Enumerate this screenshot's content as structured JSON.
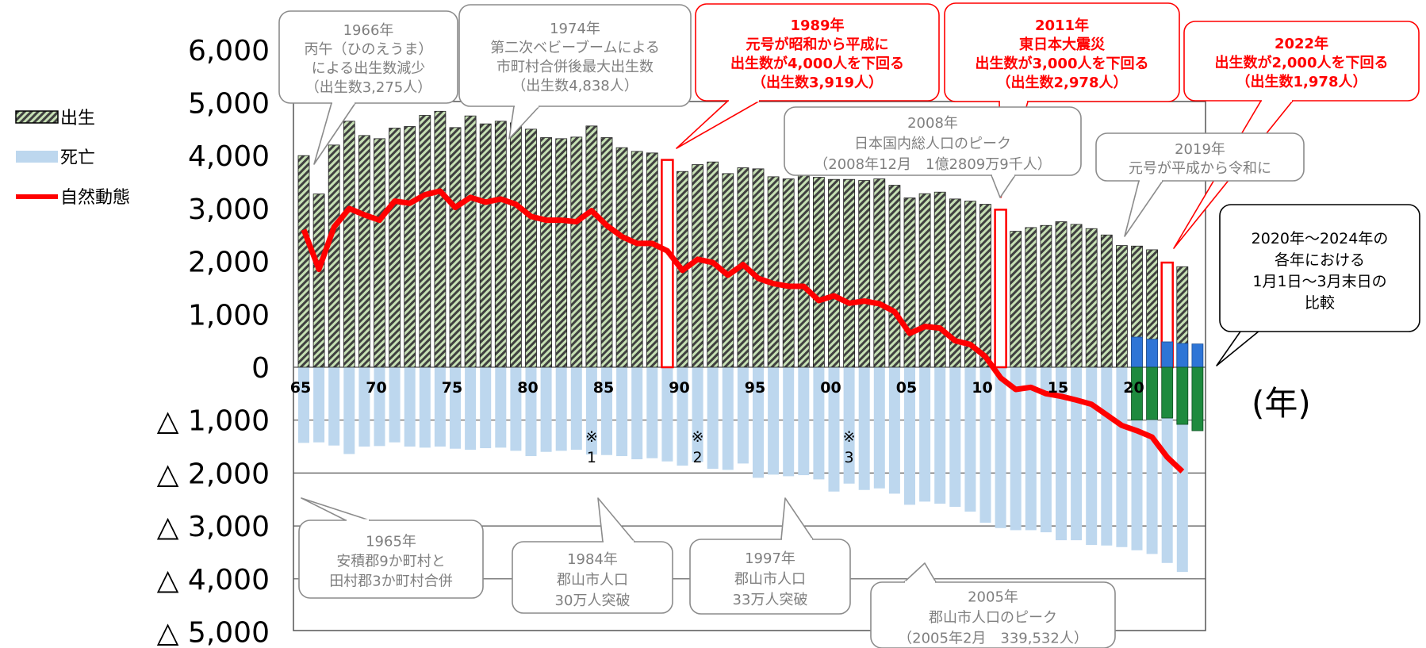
{
  "chart_data": {
    "type": "bar",
    "y_unit_label": "(年)",
    "ylim": [
      -5000,
      6000
    ],
    "y_ticks": [
      {
        "value": 6000,
        "label": "6,000"
      },
      {
        "value": 5000,
        "label": "5,000"
      },
      {
        "value": 4000,
        "label": "4,000"
      },
      {
        "value": 3000,
        "label": "3,000"
      },
      {
        "value": 2000,
        "label": "2,000"
      },
      {
        "value": 1000,
        "label": "1,000"
      },
      {
        "value": 0,
        "label": "0"
      },
      {
        "value": -1000,
        "label": "△ 1,000"
      },
      {
        "value": -2000,
        "label": "△ 2,000"
      },
      {
        "value": -3000,
        "label": "△ 3,000"
      },
      {
        "value": -4000,
        "label": "△ 4,000"
      },
      {
        "value": -5000,
        "label": "△ 5,000"
      }
    ],
    "x_ticks": [
      {
        "year": 1965,
        "label": "65"
      },
      {
        "year": 1970,
        "label": "70"
      },
      {
        "year": 1975,
        "label": "75"
      },
      {
        "year": 1980,
        "label": "80"
      },
      {
        "year": 1985,
        "label": "85"
      },
      {
        "year": 1990,
        "label": "90"
      },
      {
        "year": 1995,
        "label": "95"
      },
      {
        "year": 2000,
        "label": "00"
      },
      {
        "year": 2005,
        "label": "05"
      },
      {
        "year": 2010,
        "label": "10"
      },
      {
        "year": 2015,
        "label": "15"
      },
      {
        "year": 2020,
        "label": "20"
      }
    ],
    "legend": [
      {
        "name": "出生",
        "style": "hatched"
      },
      {
        "name": "死亡",
        "style": "lightblue"
      },
      {
        "name": "自然動態",
        "style": "line"
      }
    ],
    "years": [
      1965,
      1966,
      1967,
      1968,
      1969,
      1970,
      1971,
      1972,
      1973,
      1974,
      1975,
      1976,
      1977,
      1978,
      1979,
      1980,
      1981,
      1982,
      1983,
      1984,
      1985,
      1986,
      1987,
      1988,
      1989,
      1990,
      1991,
      1992,
      1993,
      1994,
      1995,
      1996,
      1997,
      1998,
      1999,
      2000,
      2001,
      2002,
      2003,
      2004,
      2005,
      2006,
      2007,
      2008,
      2009,
      2010,
      2011,
      2012,
      2013,
      2014,
      2015,
      2016,
      2017,
      2018,
      2019,
      2020,
      2021,
      2022,
      2023,
      2024
    ],
    "series": [
      {
        "name": "出生",
        "values": [
          4000,
          3275,
          4200,
          4650,
          4380,
          4320,
          4520,
          4550,
          4760,
          4838,
          4530,
          4750,
          4600,
          4650,
          4620,
          4500,
          4340,
          4320,
          4350,
          4560,
          4340,
          4150,
          4080,
          4050,
          3919,
          3700,
          3830,
          3880,
          3660,
          3770,
          3750,
          3600,
          3560,
          3640,
          3590,
          3550,
          3550,
          3530,
          3560,
          3440,
          3200,
          3280,
          3310,
          3180,
          3140,
          3080,
          2978,
          2570,
          2640,
          2680,
          2750,
          2700,
          2620,
          2500,
          2300,
          2290,
          2220,
          1978,
          1900,
          null
        ]
      },
      {
        "name": "死亡",
        "values": [
          -1430,
          -1420,
          -1480,
          -1640,
          -1500,
          -1490,
          -1420,
          -1500,
          -1520,
          -1500,
          -1540,
          -1560,
          -1530,
          -1520,
          -1580,
          -1680,
          -1600,
          -1580,
          -1560,
          -1650,
          -1660,
          -1680,
          -1740,
          -1720,
          -1780,
          -1860,
          -1790,
          -1920,
          -1940,
          -1820,
          -2090,
          -2030,
          -2060,
          -2040,
          -2120,
          -2350,
          -2200,
          -2320,
          -2290,
          -2390,
          -2600,
          -2540,
          -2580,
          -2640,
          -2730,
          -2940,
          -3040,
          -3080,
          -3080,
          -3120,
          -3270,
          -3270,
          -3360,
          -3370,
          -3400,
          -3460,
          -3530,
          -3700,
          -3870,
          null
        ]
      },
      {
        "name": "自然動態",
        "values": [
          2600,
          1850,
          2650,
          3000,
          2880,
          2780,
          3140,
          3100,
          3260,
          3330,
          3020,
          3210,
          3120,
          3180,
          3080,
          2850,
          2780,
          2780,
          2750,
          2960,
          2680,
          2470,
          2340,
          2340,
          2200,
          1830,
          2040,
          1980,
          1740,
          1940,
          1680,
          1580,
          1530,
          1530,
          1260,
          1350,
          1210,
          1250,
          1200,
          1050,
          640,
          770,
          740,
          500,
          430,
          200,
          -200,
          -420,
          -380,
          -500,
          -550,
          -620,
          -700,
          -900,
          -1100,
          -1200,
          -1320,
          -1700,
          -1970,
          null
        ]
      },
      {
        "name": "1月1日～3月末日 出生",
        "values": [
          570,
          530,
          480,
          450,
          440
        ],
        "years": [
          2020,
          2021,
          2022,
          2023,
          2024
        ]
      },
      {
        "name": "1月1日～3月末日 死亡",
        "values": [
          -1000,
          -990,
          -960,
          -1080,
          -1200
        ],
        "years": [
          2020,
          2021,
          2022,
          2023,
          2024
        ]
      }
    ],
    "highlighted_years": [
      1989,
      2011,
      2022
    ],
    "markers": [
      {
        "label": "※",
        "sub": "1",
        "year": 1984
      },
      {
        "label": "※",
        "sub": "2",
        "year": 1991
      },
      {
        "label": "※",
        "sub": "3",
        "year": 2001
      }
    ]
  },
  "annotations": {
    "a1966": [
      "1966年",
      "丙午（ひのえうま）",
      "による出生数減少",
      "（出生数3,275人）"
    ],
    "a1974": [
      "1974年",
      "第二次ベビーブームによる",
      "市町村合併後最大出生数",
      "（出生数4,838人）"
    ],
    "a1989": [
      "1989年",
      "元号が昭和から平成に",
      "出生数が4,000人を下回る",
      "（出生数3,919人）"
    ],
    "a2011": [
      "2011年",
      "東日本大震災",
      "出生数が3,000人を下回る",
      "（出生数2,978人）"
    ],
    "a2022": [
      "2022年",
      "出生数が2,000人を下回る",
      "（出生数1,978人）"
    ],
    "a2008": [
      "2008年",
      "日本国内総人口のピーク",
      "（2008年12月　1億2809万9千人）"
    ],
    "a2019": [
      "2019年",
      "元号が平成から令和に"
    ],
    "a2020_24": [
      "2020年～2024年の",
      "各年における",
      "1月1日～3月末日の",
      "比較"
    ],
    "a1965": [
      "1965年",
      "安積郡9か町村と",
      "田村郡3か町村合併"
    ],
    "a1984": [
      "1984年",
      "郡山市人口",
      "30万人突破"
    ],
    "a1997": [
      "1997年",
      "郡山市人口",
      "33万人突破"
    ],
    "a2005": [
      "2005年",
      "郡山市人口のピーク",
      "（2005年2月　339,532人）"
    ]
  },
  "colors": {
    "birth_fill": "#c6e0b4",
    "birth_hatch": "#404040",
    "death_fill": "#bdd7ee",
    "natural_line": "#ff0000",
    "q1_birth": "#2e75d6",
    "q1_death": "#1e8a3e",
    "highlight": "#ff0000",
    "annotation_gray": "#7f7f7f",
    "annotation_red": "#ff0000"
  }
}
